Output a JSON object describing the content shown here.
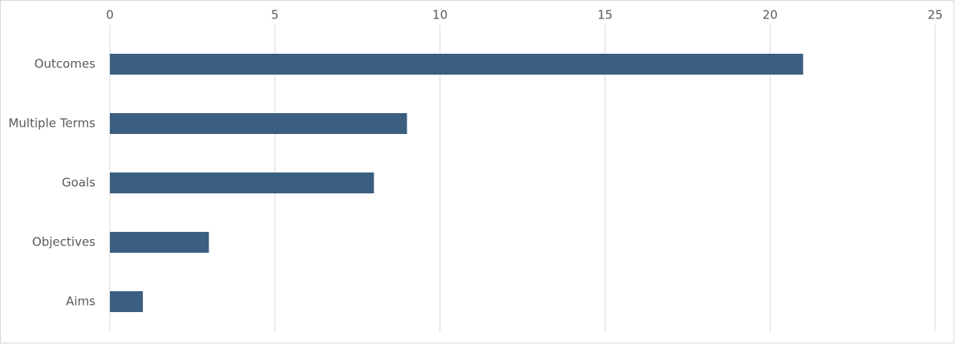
{
  "chart_data": {
    "type": "bar",
    "orientation": "horizontal",
    "categories": [
      "Outcomes",
      "Multiple Terms",
      "Goals",
      "Objectives",
      "Aims"
    ],
    "values": [
      21,
      9,
      8,
      3,
      1
    ],
    "color": "#3a5f80",
    "xlim": [
      0,
      25
    ],
    "xticks": [
      0,
      5,
      10,
      15,
      20,
      25
    ],
    "grid": true
  }
}
